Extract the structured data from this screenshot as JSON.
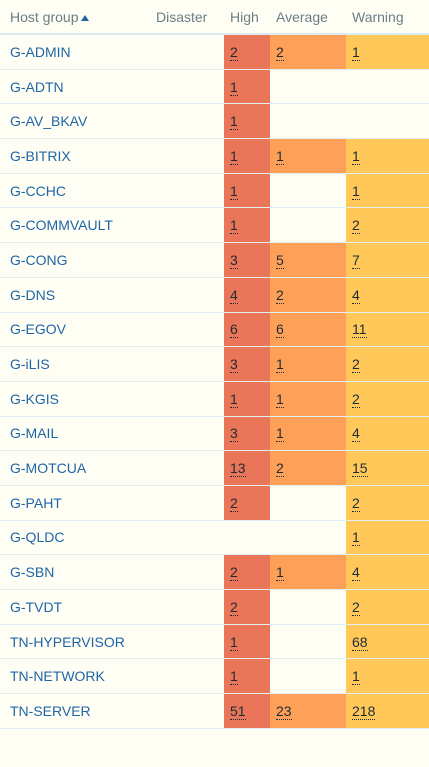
{
  "header": {
    "host_group": "Host group",
    "disaster": "Disaster",
    "high": "High",
    "average": "Average",
    "warning": "Warning"
  },
  "colors": {
    "high": "#e97659",
    "average": "#ffa059",
    "warning": "#ffc859",
    "link": "#1f65a6",
    "background": "#fffef5"
  },
  "rows": [
    {
      "name": "G-ADMIN",
      "disaster": "",
      "high": "2",
      "average": "2",
      "warning": "1"
    },
    {
      "name": "G-ADTN",
      "disaster": "",
      "high": "1",
      "average": "",
      "warning": ""
    },
    {
      "name": "G-AV_BKAV",
      "disaster": "",
      "high": "1",
      "average": "",
      "warning": ""
    },
    {
      "name": "G-BITRIX",
      "disaster": "",
      "high": "1",
      "average": "1",
      "warning": "1"
    },
    {
      "name": "G-CCHC",
      "disaster": "",
      "high": "1",
      "average": "",
      "warning": "1"
    },
    {
      "name": "G-COMMVAULT",
      "disaster": "",
      "high": "1",
      "average": "",
      "warning": "2"
    },
    {
      "name": "G-CONG",
      "disaster": "",
      "high": "3",
      "average": "5",
      "warning": "7"
    },
    {
      "name": "G-DNS",
      "disaster": "",
      "high": "4",
      "average": "2",
      "warning": "4"
    },
    {
      "name": "G-EGOV",
      "disaster": "",
      "high": "6",
      "average": "6",
      "warning": "11"
    },
    {
      "name": "G-iLIS",
      "disaster": "",
      "high": "3",
      "average": "1",
      "warning": "2"
    },
    {
      "name": "G-KGIS",
      "disaster": "",
      "high": "1",
      "average": "1",
      "warning": "2"
    },
    {
      "name": "G-MAIL",
      "disaster": "",
      "high": "3",
      "average": "1",
      "warning": "4"
    },
    {
      "name": "G-MOTCUA",
      "disaster": "",
      "high": "13",
      "average": "2",
      "warning": "15"
    },
    {
      "name": "G-PAHT",
      "disaster": "",
      "high": "2",
      "average": "",
      "warning": "2"
    },
    {
      "name": "G-QLDC",
      "disaster": "",
      "high": "",
      "average": "",
      "warning": "1"
    },
    {
      "name": "G-SBN",
      "disaster": "",
      "high": "2",
      "average": "1",
      "warning": "4"
    },
    {
      "name": "G-TVDT",
      "disaster": "",
      "high": "2",
      "average": "",
      "warning": "2"
    },
    {
      "name": "TN-HYPERVISOR",
      "disaster": "",
      "high": "1",
      "average": "",
      "warning": "68"
    },
    {
      "name": "TN-NETWORK",
      "disaster": "",
      "high": "1",
      "average": "",
      "warning": "1"
    },
    {
      "name": "TN-SERVER",
      "disaster": "",
      "high": "51",
      "average": "23",
      "warning": "218"
    }
  ]
}
